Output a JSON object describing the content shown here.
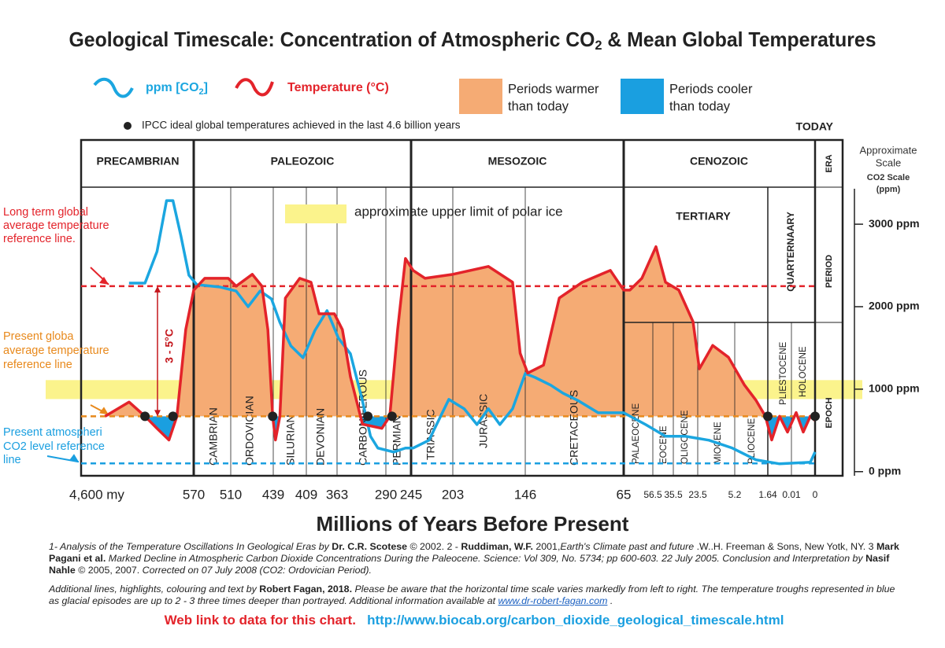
{
  "chart_data": {
    "type": "line",
    "title_parts": [
      "Geological Timescale: Concentration of Atmospheric CO",
      "2",
      " & Mean Global Temperatures"
    ],
    "x_label": "Millions of Years Before Present",
    "xticks": [
      {
        "value": 4600,
        "label": "4,600 my"
      },
      570,
      510,
      439,
      409,
      363,
      290,
      245,
      203,
      146,
      65,
      56.5,
      35.5,
      23.5,
      5.2,
      1.64,
      0.01,
      0
    ],
    "ylim": [
      14.8,
      25.7
    ],
    "y2lim": [
      -50,
      3430
    ],
    "y2ticks": [
      {
        "value": 0,
        "label": "0 ppm"
      },
      {
        "value": 1000,
        "label": "1000 ppm"
      },
      {
        "value": 2000,
        "label": "2000 ppm"
      },
      {
        "value": 3000,
        "label": "3000 ppm"
      }
    ],
    "y2_label_lines": [
      "Approximate",
      "Scale",
      "CO2 Scale",
      "(ppm)"
    ],
    "series": [
      {
        "name_parts": [
          "ppm [CO",
          "2",
          "]"
        ],
        "color": "#1ba6e0",
        "axis": "y2",
        "x": [
          2885,
          2314,
          1885,
          1542,
          1313,
          1028,
          742,
          565,
          527,
          501,
          481,
          461,
          442,
          433,
          423,
          412,
          396,
          378,
          361,
          343,
          325,
          313,
          302,
          276,
          255,
          243,
          227,
          207,
          194,
          184,
          175,
          166,
          156,
          146,
          138,
          125,
          115,
          102,
          86,
          65,
          58.6,
          43.5,
          29.6,
          17.9,
          6.4,
          2.9,
          0.83,
          0.002,
          0
        ],
        "values": [
          2286,
          2286,
          2667,
          3286,
          3286,
          2857,
          2381,
          2267,
          2238,
          2190,
          2000,
          2190,
          2095,
          1810,
          1524,
          1381,
          1714,
          1952,
          1619,
          1429,
          857,
          429,
          286,
          238,
          286,
          286,
          381,
          876,
          762,
          571,
          762,
          571,
          762,
          1190,
          1143,
          1048,
          952,
          857,
          714,
          714,
          571,
          429,
          429,
          381,
          286,
          143,
          95,
          114,
          238
        ]
      },
      {
        "name_parts": [
          "Temperature (°C)"
        ],
        "color": "#e3232a",
        "x": [
          3743,
          2885,
          2314,
          1885,
          1456,
          1171,
          856,
          570,
          552,
          514,
          501,
          474,
          458,
          448,
          440,
          437,
          433,
          428,
          415,
          402,
          390,
          367,
          355,
          343,
          325,
          296,
          283,
          269,
          255,
          243,
          231,
          203,
          175,
          156,
          150,
          144,
          131,
          118,
          99,
          76,
          65,
          63.2,
          59.7,
          53.3,
          43.5,
          32.8,
          25.8,
          22.7,
          16.1,
          8.3,
          4.18,
          2.9,
          1.9,
          1.37,
          0.83,
          0.28,
          0.008,
          0.005,
          0.002,
          0
        ],
        "values": [
          17.06,
          17.6,
          17.06,
          16.6,
          16.16,
          17.06,
          20.35,
          21.85,
          22.3,
          22.3,
          22,
          22.45,
          22,
          20.35,
          17.06,
          16.16,
          17.06,
          21.55,
          22.3,
          22.15,
          20.95,
          20.95,
          20.35,
          18.56,
          16.76,
          16.6,
          17.06,
          20.35,
          23.05,
          22.6,
          22.3,
          22.45,
          22.75,
          22.15,
          19.45,
          18.7,
          19,
          21.55,
          22.15,
          22.6,
          21.85,
          21.85,
          22.3,
          23.5,
          22.15,
          21.85,
          20.65,
          18.86,
          19.75,
          19.3,
          18.26,
          17.66,
          17.06,
          16.16,
          17.06,
          16.46,
          17.2,
          16.46,
          17.06,
          16.9
        ]
      }
    ],
    "shading": [
      {
        "label_lines": [
          "Periods warmer",
          "than today"
        ],
        "color": "#f5ab74"
      },
      {
        "label_lines": [
          "Periods cooler",
          "than today"
        ],
        "color": "#1a9fe0"
      }
    ],
    "ipcc_note": "IPCC ideal global temperatures achieved in the last 4.6 billion years",
    "ipcc_points_x": [
      2314,
      1313,
      440,
      317,
      279,
      1.64,
      0
    ],
    "today": "TODAY",
    "reference_lines": [
      {
        "label_lines": [
          "Long term global",
          "average temperature",
          "reference line."
        ],
        "value": 22,
        "color": "#e3232a"
      },
      {
        "label_lines": [
          "Present globa",
          "average temperature",
          "reference line"
        ],
        "value": 17.06,
        "color": "#e8891c"
      },
      {
        "label_lines": [
          "Present atmospheri",
          "CO2 level reference",
          "line"
        ],
        "value": 100,
        "axis": "y2",
        "color": "#1a9fe0"
      }
    ],
    "warming_label": "3 - 5°C",
    "polar_ice": {
      "label": "approximate upper limit of polar ice",
      "range": [
        880,
        1110
      ],
      "color": "#fbf38c"
    },
    "eras": [
      "PRECAMBRIAN",
      "PALEOZOIC",
      "MESOZOIC",
      "CENOZOIC"
    ],
    "row_labels": [
      "ERA",
      "PERIOD",
      "EPOCH"
    ],
    "periods": [
      "CAMBRIAN",
      "ORDOVICIAN",
      "SILURIAN",
      "DEVONIAN",
      "CARBONIFEROUS",
      "PERMIAN",
      "TRIASSIC",
      "JURASSIC",
      "CRETACEOUS",
      "TERTIARY",
      "QUARTERNAARY"
    ],
    "epochs": [
      "PALAEOCENE",
      "EOCENE",
      "OLIGOCENE",
      "MIOCENE",
      "PLIOCENE",
      "PLIESTOCENE",
      "HOLOCENE"
    ]
  },
  "footer": {
    "paragraph1": [
      "1- Analysis of the Temperature Oscillations In Geological Eras by ",
      "Dr. C.R. Scotese",
      " © 2002. 2 - ",
      "Ruddiman, W.F.",
      " 2001,",
      "Earth's Climate past and future",
      " .W..H. Freeman & Sons, New Yotk, NY. 3 ",
      "Mark Pagani et al.",
      " Marked Decline in Atmospheric Carbon Dioxide Concentrations During the Paleocene. Science: Vol 309, No. 5734; pp 600-603. 22 July 2005. Conclusion and Interpretation by ",
      "Nasif Nahle",
      " © 2005, 2007. ",
      "Corrected on 07 July 2008 (CO2: Ordovician Period)."
    ],
    "paragraph2": [
      "Additional lines, highlights, colouring and text by ",
      "Robert Fagan, 2018.",
      "  Please be aware that the horizontal time scale varies markedly from left to right.  The temperature troughs represented in blue as glacial episodes are up to 2 - 3 three times deeper than portrayed. Additional information available at ",
      "www.dr-robert-fagan.com",
      "  ."
    ],
    "web_label": "Web link to data for this chart.",
    "web_url": "http://www.biocab.org/carbon_dioxide_geological_timescale.html"
  }
}
